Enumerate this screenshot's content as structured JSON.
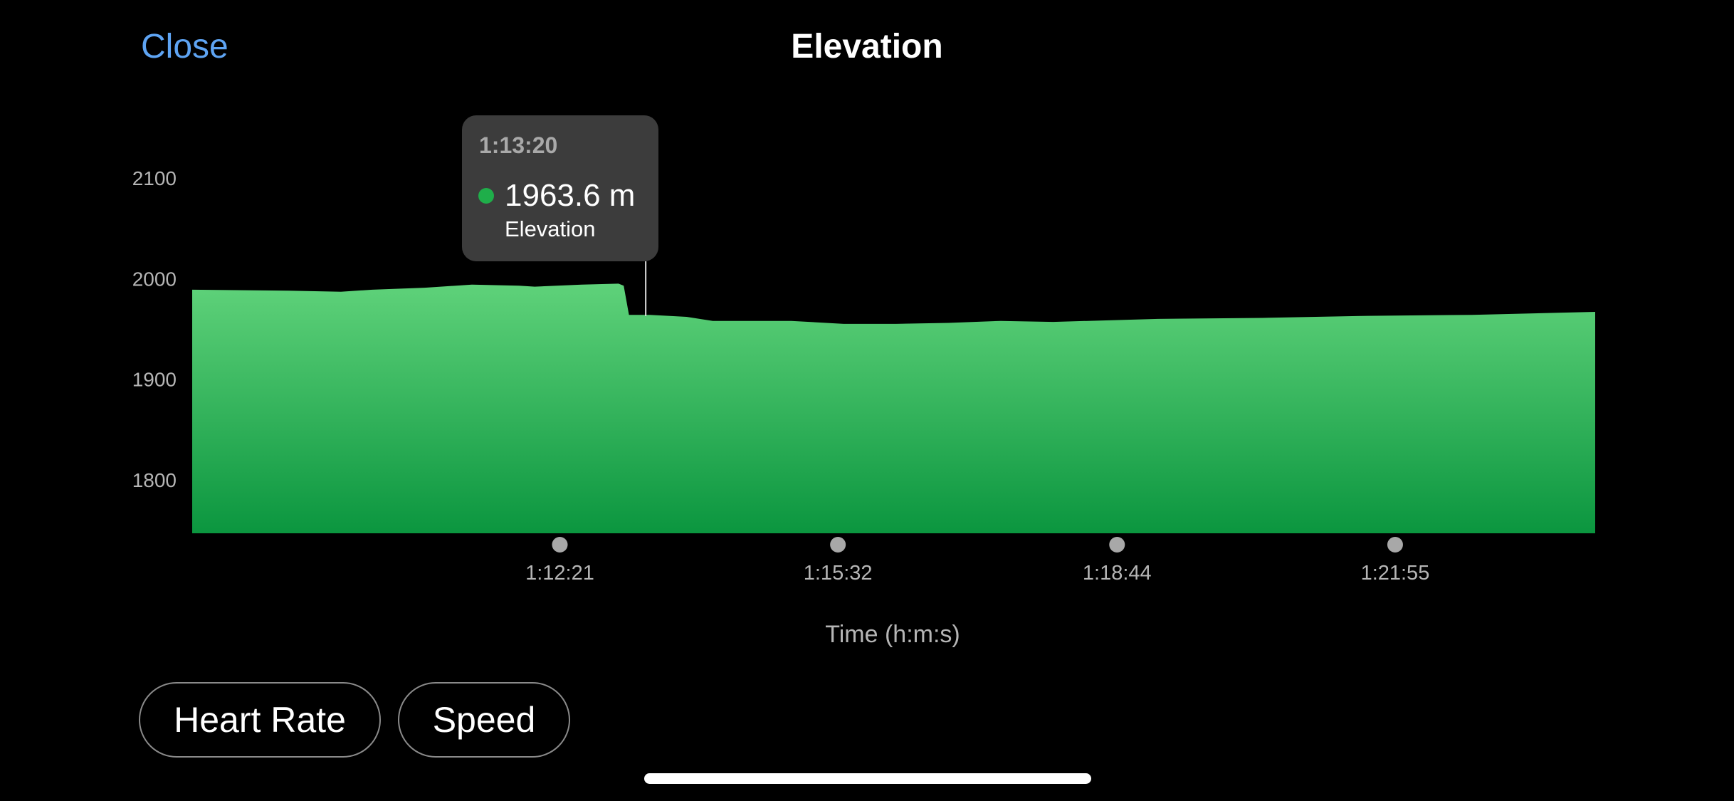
{
  "header": {
    "close_label": "Close",
    "title": "Elevation"
  },
  "tooltip": {
    "time": "1:13:20",
    "value": "1963.6 m",
    "series": "Elevation",
    "x": 1.2222
  },
  "tabs": [
    {
      "label": "Heart Rate"
    },
    {
      "label": "Speed"
    }
  ],
  "colors": {
    "accent": "#5ea4f3",
    "fill_top": "#5fd27a",
    "fill_bottom": "#0b963f",
    "marker": "#1fae4a"
  },
  "chart_data": {
    "type": "area",
    "xlabel": "Time (h:m:s)",
    "ylabel": "",
    "xlim": [
      1.1356,
      1.4035
    ],
    "ylim": [
      1747,
      2100
    ],
    "yticks": [
      1800,
      1900,
      2000,
      2100
    ],
    "xticks": [
      {
        "value": 1.2058,
        "label": "1:12:21"
      },
      {
        "value": 1.2589,
        "label": "1:15:32"
      },
      {
        "value": 1.3122,
        "label": "1:18:44"
      },
      {
        "value": 1.3653,
        "label": "1:21:55"
      }
    ],
    "grid": false,
    "series": [
      {
        "name": "Elevation",
        "x": [
          1.1356,
          1.154,
          1.164,
          1.17,
          1.18,
          1.189,
          1.198,
          1.201,
          1.21,
          1.217,
          1.218,
          1.219,
          1.223,
          1.23,
          1.235,
          1.245,
          1.25,
          1.26,
          1.27,
          1.28,
          1.29,
          1.3,
          1.32,
          1.34,
          1.36,
          1.38,
          1.4035
        ],
        "y": [
          1989,
          1988,
          1987,
          1989,
          1991,
          1994,
          1993,
          1992,
          1994,
          1995,
          1993,
          1964,
          1964,
          1962,
          1958,
          1958,
          1958,
          1955,
          1955,
          1956,
          1958,
          1957,
          1960,
          1961,
          1963,
          1964,
          1967
        ]
      }
    ]
  }
}
